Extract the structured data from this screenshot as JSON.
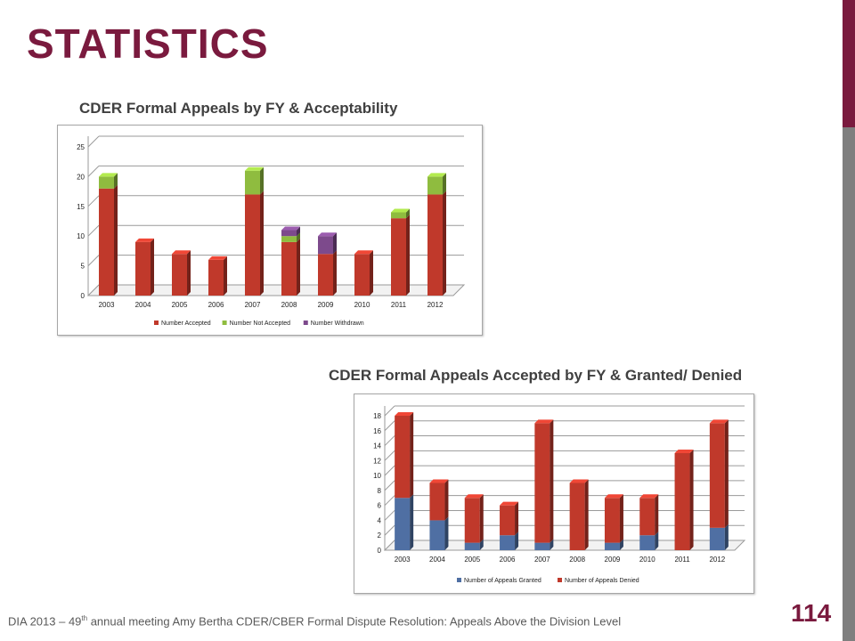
{
  "slide": {
    "title": "STATISTICS",
    "page_number": "114",
    "footer": {
      "pre": "DIA  2013 – 49",
      "sup": "th",
      "post": " annual meeting  Amy Bertha CDER/CBER Formal Dispute Resolution: Appeals Above the Division Level"
    }
  },
  "colors": {
    "title": "#7a1a3e",
    "sidebar_top": "#7a1a3e",
    "sidebar_bottom": "#7f7f7f"
  },
  "chart_data": [
    {
      "type": "bar",
      "stacked": true,
      "title": "CDER Formal Appeals by FY & Acceptability",
      "categories": [
        "2003",
        "2004",
        "2005",
        "2006",
        "2007",
        "2008",
        "2009",
        "2010",
        "2011",
        "2012"
      ],
      "series": [
        {
          "name": "Number Accepted",
          "color": "#c0392b",
          "values": [
            18,
            9,
            7,
            6,
            17,
            9,
            7,
            7,
            13,
            17
          ]
        },
        {
          "name": "Number Not Accepted",
          "color": "#8fbc3f",
          "values": [
            2,
            0,
            0,
            0,
            4,
            1,
            0,
            0,
            1,
            3
          ]
        },
        {
          "name": "Number Withdrawn",
          "color": "#7d4a8c",
          "values": [
            0,
            0,
            0,
            0,
            0,
            1,
            3,
            0,
            0,
            0
          ]
        }
      ],
      "yticks": [
        0,
        5,
        10,
        15,
        20,
        25
      ],
      "ylim": [
        0,
        25
      ],
      "grid": true,
      "legend": "bottom"
    },
    {
      "type": "bar",
      "stacked": true,
      "title": "CDER Formal Appeals Accepted by FY & Granted/ Denied",
      "categories": [
        "2003",
        "2004",
        "2005",
        "2006",
        "2007",
        "2008",
        "2009",
        "2010",
        "2011",
        "2012"
      ],
      "series": [
        {
          "name": "Number of Appeals Granted",
          "color": "#4f6fa3",
          "values": [
            7,
            4,
            1,
            2,
            1,
            0,
            1,
            2,
            0,
            3
          ]
        },
        {
          "name": "Number of Appeals Denied",
          "color": "#c0392b",
          "values": [
            11,
            5,
            6,
            4,
            16,
            9,
            6,
            5,
            13,
            14
          ]
        }
      ],
      "yticks": [
        0,
        2,
        4,
        6,
        8,
        10,
        12,
        14,
        16,
        18
      ],
      "ylim": [
        0,
        18
      ],
      "grid": true,
      "legend": "bottom"
    }
  ]
}
